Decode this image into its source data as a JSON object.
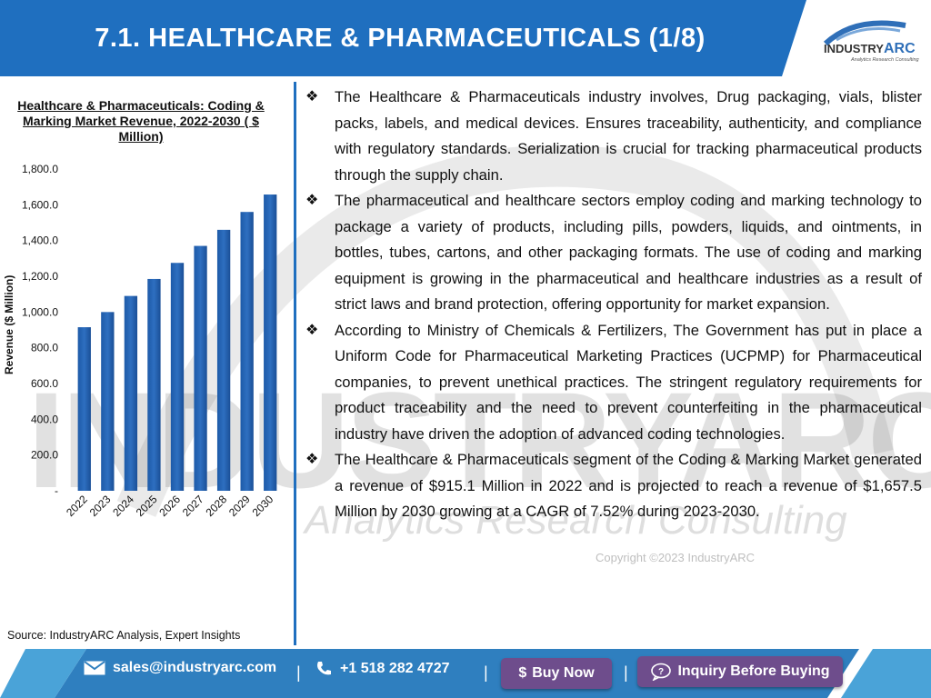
{
  "header": {
    "title": "7.1. HEALTHCARE & PHARMACEUTICALS (1/8)",
    "logo_main": "INDUSTRY",
    "logo_accent": "ARC",
    "logo_tagline": "Analytics Research Consulting"
  },
  "watermark": {
    "main": "INDUSTRYARC",
    "sub": "Analytics  Research  Consulting",
    "copyright": "Copyright ©2023 IndustryARC"
  },
  "chart_data": {
    "type": "bar",
    "title": "Healthcare & Pharmaceuticals: Coding & Marking Market Revenue, 2022-2030 ( $ Million)",
    "xlabel": "",
    "ylabel": "Revenue ($ Million)",
    "categories": [
      "2022",
      "2023",
      "2024",
      "2025",
      "2026",
      "2027",
      "2028",
      "2029",
      "2030"
    ],
    "values": [
      915.1,
      1000,
      1090,
      1185,
      1275,
      1370,
      1460,
      1560,
      1657.5
    ],
    "ylim": [
      0,
      1800
    ],
    "yticks": [
      "-",
      "200.0",
      "400.0",
      "600.0",
      "800.0",
      "1,000.0",
      "1,200.0",
      "1,400.0",
      "1,600.0",
      "1,800.0"
    ],
    "bar_color": "#2e6fc0",
    "grid": false,
    "legend": "none"
  },
  "source": "Source: IndustryARC Analysis, Expert Insights",
  "bullets": [
    "The Healthcare & Pharmaceuticals industry involves, Drug packaging, vials, blister packs, labels, and medical devices. Ensures traceability, authenticity, and compliance with regulatory standards. Serialization is crucial for tracking pharmaceutical products through the supply chain.",
    "The pharmaceutical and healthcare sectors employ coding and marking technology to package a variety of products, including pills, powders, liquids, and ointments, in bottles, tubes, cartons, and other packaging formats. The use of coding and marking equipment is growing in the pharmaceutical and healthcare industries as a result of strict laws and brand protection, offering opportunity for market expansion.",
    "According to Ministry of Chemicals & Fertilizers, The Government has put in place a Uniform Code for Pharmaceutical Marketing Practices (UCPMP) for Pharmaceutical companies, to prevent unethical practices. The stringent regulatory requirements for product traceability and the need to prevent counterfeiting in the pharmaceutical industry have driven the adoption of advanced coding technologies.",
    "The Healthcare & Pharmaceuticals segment of the Coding & Marking Market generated a revenue of $915.1 Million in 2022 and is projected to reach a revenue of $1,657.5 Million by 2030 growing at a CAGR of 7.52% during 2023-2030."
  ],
  "bullet_marker": "❖",
  "footer": {
    "email": "sales@industryarc.com",
    "phone": "+1 518 282 4727",
    "separator": "|",
    "buy_now": "Buy Now",
    "buy_symbol": "$",
    "inquiry": "Inquiry Before Buying"
  },
  "colors": {
    "header_blue": "#1f6fbf",
    "footer_blue": "#2f7fbf",
    "button_purple": "#6e4d8c",
    "bar_blue": "#2e6fc0"
  }
}
